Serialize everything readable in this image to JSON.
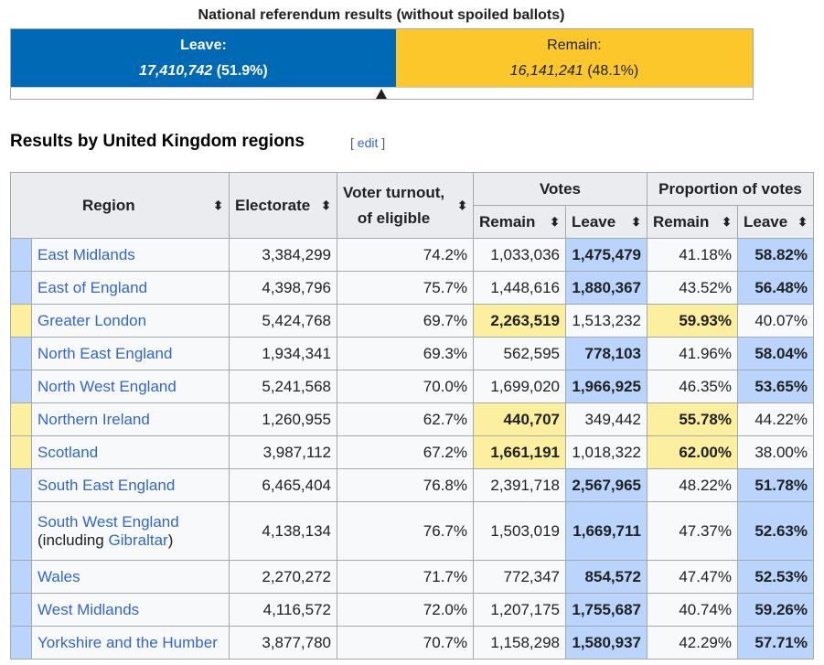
{
  "national": {
    "title": "National referendum results (without spoiled ballots)",
    "leave_label": "Leave:",
    "leave_votes": "17,410,742",
    "leave_pct": "(51.9%)",
    "remain_label": "Remain:",
    "remain_votes": "16,141,241",
    "remain_pct": "(48.1%)",
    "leave_share": 0.519,
    "colors": {
      "leave": "#0069b5",
      "remain": "#fcc72a"
    }
  },
  "section": {
    "heading": "Results by United Kingdom regions",
    "edit_open": "[",
    "edit_label": "edit",
    "edit_close": "]"
  },
  "table": {
    "headers": {
      "region": "Region",
      "electorate": "Electorate",
      "turnout_line1": "Voter turnout,",
      "turnout_line2": "of eligible",
      "votes": "Votes",
      "proportion": "Proportion of votes",
      "remain": "Remain",
      "leave": "Leave"
    },
    "sort_icon": "sort-icon",
    "highlight_colors": {
      "leave": "#bbd4fc",
      "remain": "#fcef9f"
    },
    "rows": [
      {
        "region": "East Midlands",
        "electorate": "3,384,299",
        "turnout": "74.2%",
        "remain_votes": "1,033,036",
        "leave_votes": "1,475,479",
        "remain_pct": "41.18%",
        "leave_pct": "58.82%",
        "winner": "leave"
      },
      {
        "region": "East of England",
        "electorate": "4,398,796",
        "turnout": "75.7%",
        "remain_votes": "1,448,616",
        "leave_votes": "1,880,367",
        "remain_pct": "43.52%",
        "leave_pct": "56.48%",
        "winner": "leave"
      },
      {
        "region": "Greater London",
        "electorate": "5,424,768",
        "turnout": "69.7%",
        "remain_votes": "2,263,519",
        "leave_votes": "1,513,232",
        "remain_pct": "59.93%",
        "leave_pct": "40.07%",
        "winner": "remain"
      },
      {
        "region": "North East England",
        "electorate": "1,934,341",
        "turnout": "69.3%",
        "remain_votes": "562,595",
        "leave_votes": "778,103",
        "remain_pct": "41.96%",
        "leave_pct": "58.04%",
        "winner": "leave"
      },
      {
        "region": "North West England",
        "electorate": "5,241,568",
        "turnout": "70.0%",
        "remain_votes": "1,699,020",
        "leave_votes": "1,966,925",
        "remain_pct": "46.35%",
        "leave_pct": "53.65%",
        "winner": "leave"
      },
      {
        "region": "Northern Ireland",
        "electorate": "1,260,955",
        "turnout": "62.7%",
        "remain_votes": "440,707",
        "leave_votes": "349,442",
        "remain_pct": "55.78%",
        "leave_pct": "44.22%",
        "winner": "remain"
      },
      {
        "region": "Scotland",
        "electorate": "3,987,112",
        "turnout": "67.2%",
        "remain_votes": "1,661,191",
        "leave_votes": "1,018,322",
        "remain_pct": "62.00%",
        "leave_pct": "38.00%",
        "winner": "remain"
      },
      {
        "region": "South East England",
        "electorate": "6,465,404",
        "turnout": "76.8%",
        "remain_votes": "2,391,718",
        "leave_votes": "2,567,965",
        "remain_pct": "48.22%",
        "leave_pct": "51.78%",
        "winner": "leave"
      },
      {
        "region": "South West England",
        "region_note_open": "(including ",
        "region_note_link": "Gibraltar",
        "region_note_close": ")",
        "electorate": "4,138,134",
        "turnout": "76.7%",
        "remain_votes": "1,503,019",
        "leave_votes": "1,669,711",
        "remain_pct": "47.37%",
        "leave_pct": "52.63%",
        "winner": "leave"
      },
      {
        "region": "Wales",
        "electorate": "2,270,272",
        "turnout": "71.7%",
        "remain_votes": "772,347",
        "leave_votes": "854,572",
        "remain_pct": "47.47%",
        "leave_pct": "52.53%",
        "winner": "leave"
      },
      {
        "region": "West Midlands",
        "electorate": "4,116,572",
        "turnout": "72.0%",
        "remain_votes": "1,207,175",
        "leave_votes": "1,755,687",
        "remain_pct": "40.74%",
        "leave_pct": "59.26%",
        "winner": "leave"
      },
      {
        "region": "Yorkshire and the Humber",
        "electorate": "3,877,780",
        "turnout": "70.7%",
        "remain_votes": "1,158,298",
        "leave_votes": "1,580,937",
        "remain_pct": "42.29%",
        "leave_pct": "57.71%",
        "winner": "leave"
      }
    ]
  }
}
